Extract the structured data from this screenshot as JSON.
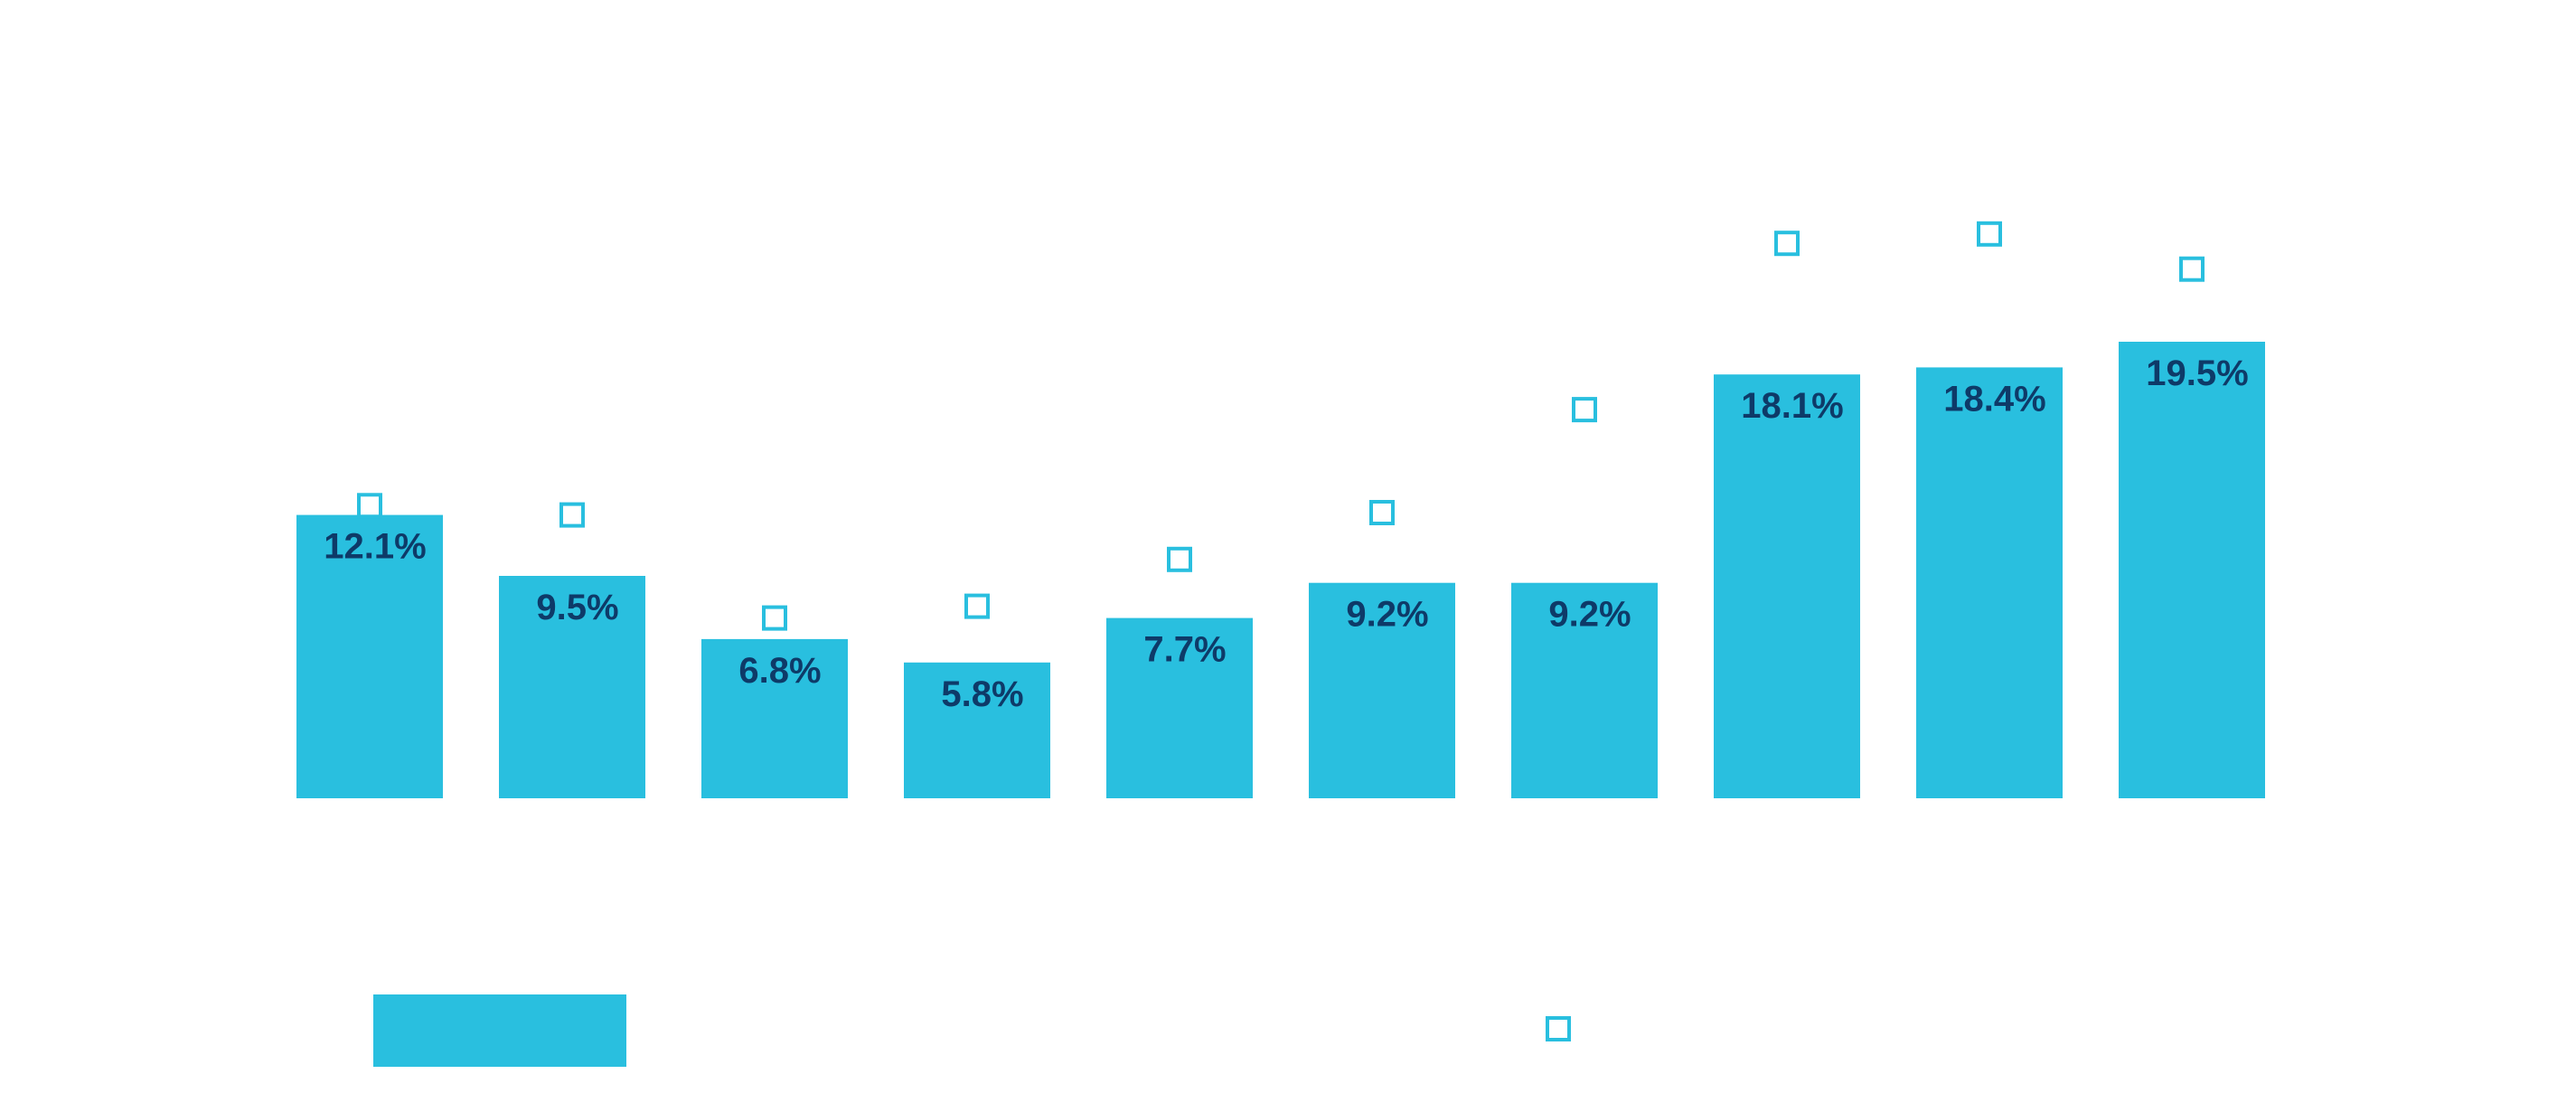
{
  "chart_data": {
    "type": "bar",
    "title": "",
    "xlabel": "",
    "ylabel": "",
    "categories": [
      "",
      "",
      "",
      "",
      "",
      "",
      "",
      "",
      "",
      ""
    ],
    "series": [
      {
        "kind": "bar",
        "values": [
          12.1,
          9.5,
          6.8,
          5.8,
          7.7,
          9.2,
          9.2,
          18.1,
          18.4,
          19.5
        ],
        "labels": [
          "12.1%",
          "9.5%",
          "6.8%",
          "5.8%",
          "7.7%",
          "9.2%",
          "9.2%",
          "18.1%",
          "18.4%",
          "19.5%"
        ]
      },
      {
        "kind": "marker",
        "values": [
          12.5,
          12.1,
          7.7,
          8.2,
          10.2,
          12.2,
          16.6,
          23.7,
          24.1,
          22.6
        ]
      }
    ],
    "ylim": [
      0,
      28
    ],
    "grid": false,
    "legend": {
      "position": "bottom",
      "entries": [
        "",
        ""
      ]
    },
    "colors": {
      "bar": "#29bfdf",
      "marker": "#29bfdf",
      "label": "#0e3a68",
      "background": "#ffffff"
    }
  }
}
